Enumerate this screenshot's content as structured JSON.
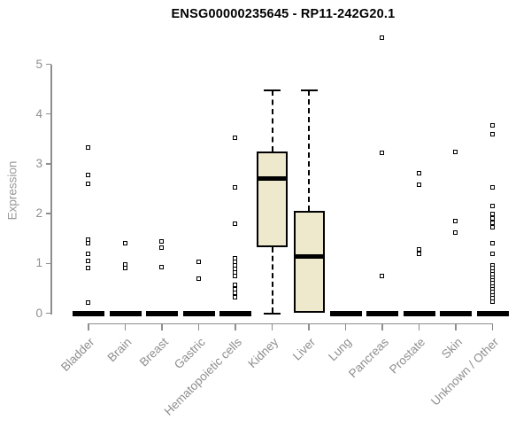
{
  "title": "ENSG00000235645 - RP11-242G20.1",
  "chart_data": {
    "type": "boxplot",
    "title": "ENSG00000235645 - RP11-242G20.1",
    "xlabel": "",
    "ylabel": "Expression",
    "ylim": [
      0,
      5
    ],
    "yticks": [
      0,
      1,
      2,
      3,
      4,
      5
    ],
    "grid": false,
    "categories": [
      "Bladder",
      "Brain",
      "Breast",
      "Gastric",
      "Hematopoietic cells",
      "Kidney",
      "Liver",
      "Lung",
      "Pancreas",
      "Prostate",
      "Skin",
      "Unknown / Other"
    ],
    "boxes": [
      {
        "category": "Kidney",
        "whisker_low": 0,
        "q1": 1.33,
        "median": 2.7,
        "q3": 3.24,
        "whisker_high": 4.48
      },
      {
        "category": "Liver",
        "whisker_low": 0,
        "q1": 0,
        "median": 1.13,
        "q3": 2.05,
        "whisker_high": 4.48
      }
    ],
    "collapsed_at_zero": [
      "Bladder",
      "Brain",
      "Breast",
      "Gastric",
      "Hematopoietic cells",
      "Lung",
      "Pancreas",
      "Prostate",
      "Skin",
      "Unknown / Other"
    ],
    "outliers": {
      "Bladder": [
        3.32,
        2.77,
        2.59,
        1.47,
        1.39,
        1.18,
        1.04,
        0.9,
        0.2
      ],
      "Brain": [
        1.4,
        0.97,
        0.9
      ],
      "Breast": [
        1.43,
        1.31,
        0.92
      ],
      "Gastric": [
        1.02,
        0.68
      ],
      "Hematopoietic cells": [
        3.51,
        2.52,
        1.79,
        1.09,
        1.02,
        0.95,
        0.88,
        0.81,
        0.74,
        0.56,
        0.48,
        0.4,
        0.32
      ],
      "Kidney": [],
      "Liver": [],
      "Lung": [],
      "Pancreas": [
        5.53,
        3.21,
        0.73
      ],
      "Prostate": [
        2.8,
        2.57,
        1.27,
        1.18
      ],
      "Skin": [
        3.23,
        1.84,
        1.61
      ],
      "Unknown / Other": [
        3.77,
        3.59,
        2.51,
        2.14,
        1.99,
        1.9,
        1.81,
        1.72,
        1.4,
        1.18,
        0.95,
        0.89,
        0.83,
        0.77,
        0.71,
        0.65,
        0.59,
        0.53,
        0.47,
        0.41,
        0.35,
        0.29,
        0.23
      ]
    },
    "colors": {
      "box_fill": "#EEE8CD",
      "box_border": "#000000",
      "median": "#000000",
      "axis": "#8e8e8e",
      "tick_text": "#8e8e8e",
      "ylabel_text": "#9a9a9a",
      "title_text": "#000000",
      "outlier_fill": "#ffffff",
      "background": "#ffffff"
    }
  }
}
